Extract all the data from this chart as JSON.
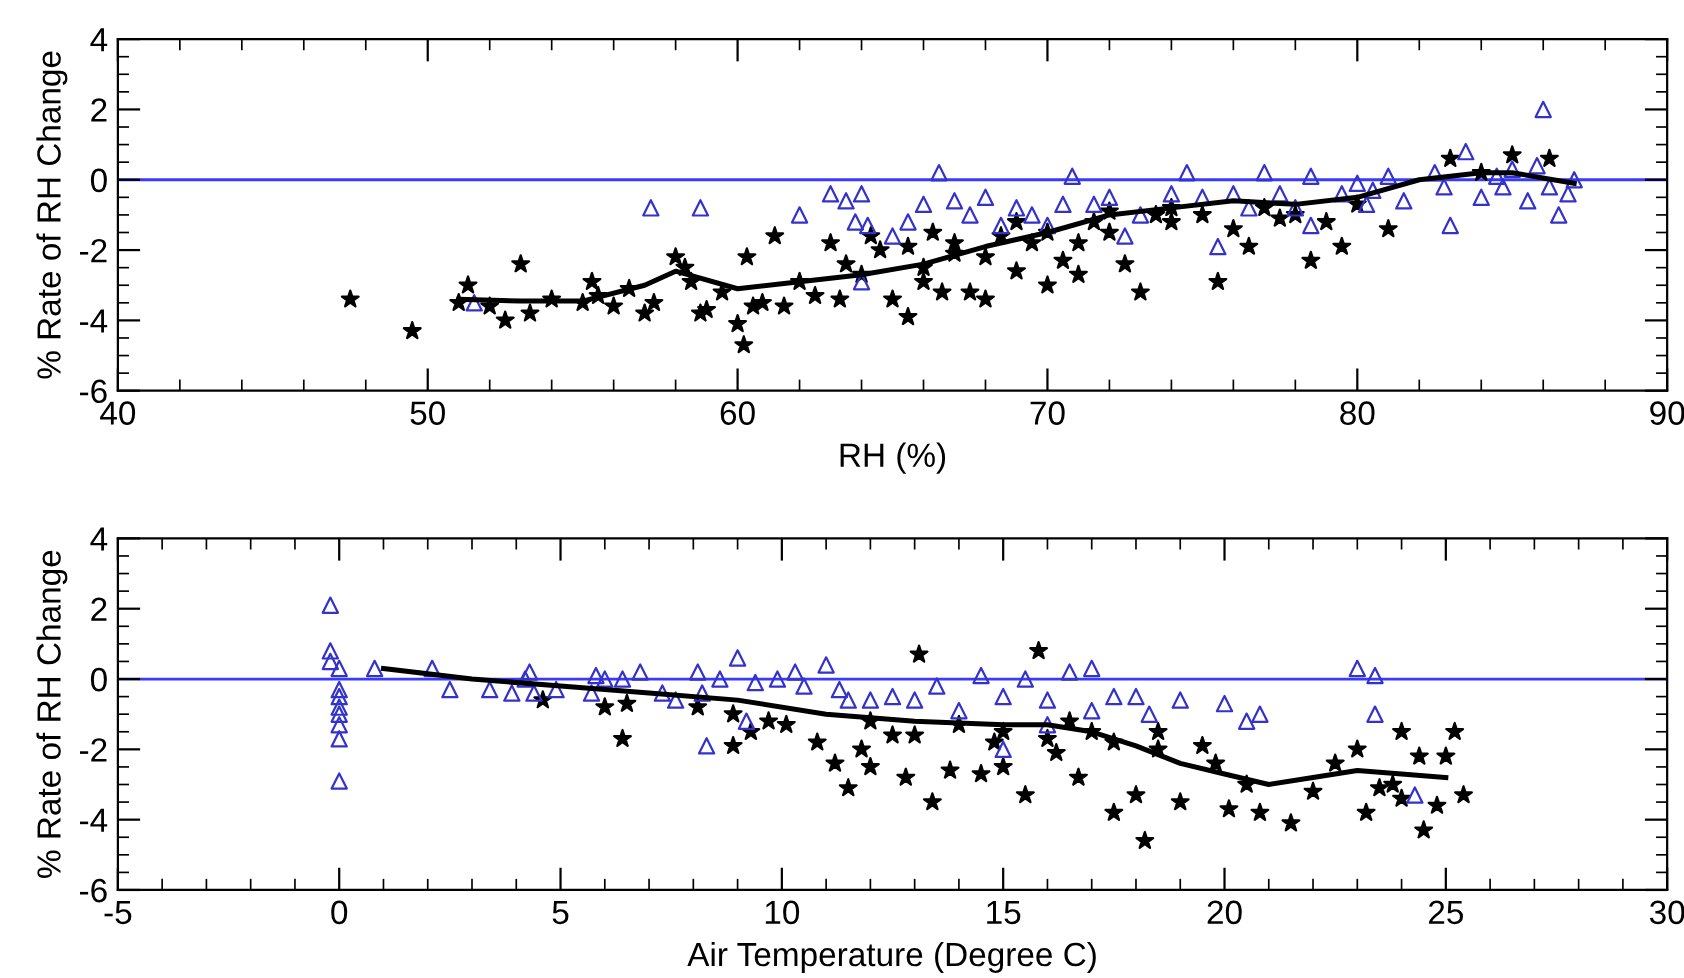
{
  "chart_data": [
    {
      "type": "scatter",
      "xlabel": "RH (%)",
      "ylabel": "% Rate of RH Change",
      "xlim": [
        40,
        90
      ],
      "xticks": [
        40,
        50,
        60,
        70,
        80,
        90
      ],
      "ylim": [
        -6,
        4
      ],
      "yticks": [
        -6,
        -4,
        -2,
        0,
        2,
        4
      ],
      "ref_lines": [
        {
          "axis": "y",
          "value": 0,
          "color": "#3a3aff"
        }
      ],
      "series": [
        {
          "marker": "star",
          "color": "#000000",
          "x": [
            47.5,
            49.5,
            51,
            51.3,
            52,
            52.5,
            53,
            53.3,
            54,
            55,
            55.3,
            55.5,
            56,
            56.5,
            57,
            57.3,
            58,
            58.3,
            58.5,
            58.8,
            59,
            59.5,
            60,
            60.2,
            60.3,
            60.5,
            60.8,
            61.2,
            61.5,
            62,
            63,
            63.3,
            63.5,
            64,
            64.3,
            64.6,
            65,
            65.5,
            66,
            66.3,
            66.6,
            67,
            67.5,
            68,
            68.5,
            69,
            69.5,
            70,
            70.5,
            70,
            71,
            71.5,
            72,
            72.5,
            73,
            73.5,
            74,
            75,
            75.5,
            76,
            76.5,
            77,
            78,
            78.5,
            79,
            79.5,
            80,
            81,
            83,
            84,
            85,
            86.2,
            67,
            68,
            69,
            71,
            72,
            74,
            77.5,
            65.5,
            66,
            62.5
          ],
          "values": [
            -3.4,
            -4.3,
            -3.5,
            -3,
            -3.6,
            -4,
            -2.4,
            -3.8,
            -3.4,
            -3.5,
            -2.9,
            -3.3,
            -3.6,
            -3.1,
            -3.8,
            -3.5,
            -2.2,
            -2.5,
            -2.9,
            -3.8,
            -3.7,
            -3.2,
            -4.1,
            -4.7,
            -2.2,
            -3.6,
            -3.5,
            -1.6,
            -3.6,
            -2.9,
            -1.8,
            -3.4,
            -2.4,
            -2.7,
            -1.6,
            -2,
            -3.4,
            -3.9,
            -2.5,
            -1.5,
            -3.2,
            -2.1,
            -3.2,
            -3.4,
            -1.6,
            -2.6,
            -1.8,
            -3,
            -2.3,
            -1.5,
            -2.7,
            -1.2,
            -1.5,
            -2.4,
            -3.2,
            -1,
            -1.2,
            -1,
            -2.9,
            -1.4,
            -1.9,
            -0.8,
            -1,
            -2.3,
            -1.2,
            -1.9,
            -0.7,
            -1.4,
            0.6,
            0.2,
            0.7,
            0.6,
            -1.8,
            -2.2,
            -1.2,
            -1.8,
            -0.9,
            -0.8,
            -1.1,
            -1.9,
            -2.9,
            -3.3
          ]
        },
        {
          "marker": "triangle",
          "color": "#3333cc",
          "x": [
            51.5,
            57.2,
            58.8,
            62,
            63,
            63.5,
            64,
            63.8,
            64.2,
            64,
            65,
            65.5,
            66,
            66.5,
            67,
            67.5,
            68,
            68.5,
            69,
            69.5,
            70,
            70.5,
            70.8,
            71.5,
            72,
            72.5,
            73,
            74,
            74.5,
            75,
            75.5,
            76,
            76.5,
            77,
            77.5,
            78,
            78.5,
            78.5,
            79.5,
            80,
            80.5,
            81,
            81.5,
            82.5,
            83,
            83.5,
            84,
            84.5,
            85,
            85.5,
            86,
            86.2,
            86.5,
            86.8,
            87,
            84.7,
            82.8,
            80.3,
            85.8
          ],
          "values": [
            -3.5,
            -0.8,
            -0.8,
            -1,
            -0.4,
            -0.6,
            -0.4,
            -1.2,
            -1.3,
            -2.9,
            -1.6,
            -1.2,
            -0.7,
            0.2,
            -0.6,
            -1,
            -0.5,
            -1.3,
            -0.8,
            -1,
            -1.3,
            -0.7,
            0.1,
            -0.7,
            -0.5,
            -1.6,
            -1,
            -0.4,
            0.2,
            -0.5,
            -1.9,
            -0.4,
            -0.8,
            0.2,
            -0.4,
            -0.8,
            -1.3,
            0.1,
            -0.4,
            -0.1,
            -0.3,
            0.1,
            -0.6,
            0.2,
            -1.3,
            0.8,
            -0.5,
            0.1,
            0.3,
            -0.6,
            2,
            -0.2,
            -1,
            -0.4,
            0,
            -0.2,
            -0.2,
            -0.7,
            0.4
          ]
        },
        {
          "type": "line",
          "marker": "none",
          "color": "#000000",
          "x": [
            51,
            53,
            55,
            57,
            58,
            60,
            62,
            64,
            66,
            68,
            70,
            72,
            74,
            76,
            78,
            80,
            82,
            84,
            85,
            87
          ],
          "values": [
            -3.4,
            -3.45,
            -3.45,
            -3,
            -2.6,
            -3.1,
            -2.9,
            -2.7,
            -2.4,
            -1.9,
            -1.5,
            -1,
            -0.8,
            -0.6,
            -0.7,
            -0.5,
            0,
            0.2,
            0.2,
            -0.1
          ]
        }
      ]
    },
    {
      "type": "scatter",
      "xlabel": "Air Temperature (Degree C)",
      "ylabel": "% Rate of RH Change",
      "xlim": [
        -5,
        30
      ],
      "xticks": [
        -5,
        0,
        5,
        10,
        15,
        20,
        25,
        30
      ],
      "ylim": [
        -6,
        4
      ],
      "yticks": [
        -6,
        -4,
        -2,
        0,
        2,
        4
      ],
      "ref_lines": [
        {
          "axis": "y",
          "value": 0,
          "color": "#3a3aff"
        }
      ],
      "series": [
        {
          "marker": "star",
          "color": "#000000",
          "x": [
            4.6,
            6,
            6.4,
            6.5,
            8.1,
            8.9,
            8.9,
            9.3,
            9.7,
            10.1,
            10.8,
            11.2,
            11.5,
            11.8,
            12,
            12.5,
            12.8,
            13.1,
            13.4,
            13.8,
            14.5,
            14.8,
            15,
            15.5,
            15.8,
            16,
            16.2,
            16.7,
            17,
            17.5,
            18,
            18.2,
            18.5,
            19,
            19.5,
            19.8,
            20.1,
            20.5,
            20.8,
            21.5,
            22,
            22.5,
            23,
            23.2,
            23.5,
            23.8,
            24,
            24,
            24.4,
            24.5,
            24.8,
            25,
            25.2,
            25.4,
            14,
            15,
            16.5,
            17.5,
            18.5,
            13,
            12
          ],
          "values": [
            -0.6,
            -0.8,
            -1.7,
            -0.7,
            -0.8,
            -1,
            -1.9,
            -1.5,
            -1.2,
            -1.3,
            -1.8,
            -2.4,
            -3.1,
            -2,
            -2.5,
            -1.6,
            -2.8,
            0.7,
            -3.5,
            -2.6,
            -2.7,
            -1.8,
            -2.5,
            -3.3,
            0.8,
            -1.7,
            -2.1,
            -2.8,
            -1.5,
            -3.8,
            -3.3,
            -4.6,
            -2,
            -3.5,
            -1.9,
            -2.4,
            -3.7,
            -3,
            -3.8,
            -4.1,
            -3.2,
            -2.4,
            -2,
            -3.8,
            -3.1,
            -3,
            -1.5,
            -3.4,
            -2.2,
            -4.3,
            -3.6,
            -2.2,
            -1.5,
            -3.3,
            -1.3,
            -1.5,
            -1.2,
            -1.8,
            -1.5,
            -1.6,
            -1.2
          ]
        },
        {
          "marker": "triangle",
          "color": "#3333cc",
          "x": [
            -0.2,
            -0.2,
            -0.2,
            0,
            0,
            0,
            0,
            0,
            0,
            0,
            0,
            0.8,
            2.1,
            2.5,
            3.4,
            3.9,
            4.2,
            4.3,
            4.4,
            4.9,
            5.7,
            5.8,
            6,
            6.4,
            6.8,
            7.3,
            7.6,
            8.1,
            8.2,
            8.3,
            8.6,
            9,
            9.2,
            9.4,
            9.9,
            10.3,
            10.5,
            11,
            11.3,
            11.5,
            12,
            12.5,
            13,
            13.5,
            14,
            14.5,
            15,
            15.5,
            16,
            16.5,
            17,
            17.5,
            18,
            18.3,
            19,
            20,
            20.5,
            20.8,
            23,
            23.4,
            23.4,
            24.3,
            15,
            16,
            17
          ],
          "values": [
            2.1,
            0.8,
            0.5,
            0.3,
            -0.3,
            -0.5,
            -0.8,
            -1,
            -1.3,
            -1.7,
            -2.9,
            0.3,
            0.3,
            -0.3,
            -0.3,
            -0.4,
            0,
            0.2,
            -0.4,
            -0.3,
            -0.4,
            0.1,
            0,
            0,
            0.2,
            -0.4,
            -0.6,
            0.2,
            -0.4,
            -1.9,
            0,
            0.6,
            -1.2,
            -0.1,
            0,
            0.2,
            -0.2,
            0.4,
            -0.3,
            -0.6,
            -0.6,
            -0.5,
            -0.6,
            -0.2,
            -0.9,
            0.1,
            -0.5,
            0,
            -0.6,
            0.2,
            0.3,
            -0.5,
            -0.5,
            -1,
            -0.6,
            -0.7,
            -1.2,
            -1,
            0.3,
            0.1,
            -1,
            -3.3,
            -2,
            -1.3,
            -0.9
          ]
        },
        {
          "type": "line",
          "marker": "none",
          "color": "#000000",
          "x": [
            1,
            3,
            5,
            7,
            9,
            11,
            13,
            15,
            16,
            17,
            18,
            19,
            20,
            21,
            22,
            23,
            24,
            25
          ],
          "values": [
            0.3,
            0,
            -0.2,
            -0.4,
            -0.6,
            -1,
            -1.2,
            -1.3,
            -1.3,
            -1.5,
            -1.9,
            -2.4,
            -2.7,
            -3,
            -2.8,
            -2.6,
            -2.7,
            -2.8
          ]
        }
      ]
    }
  ]
}
